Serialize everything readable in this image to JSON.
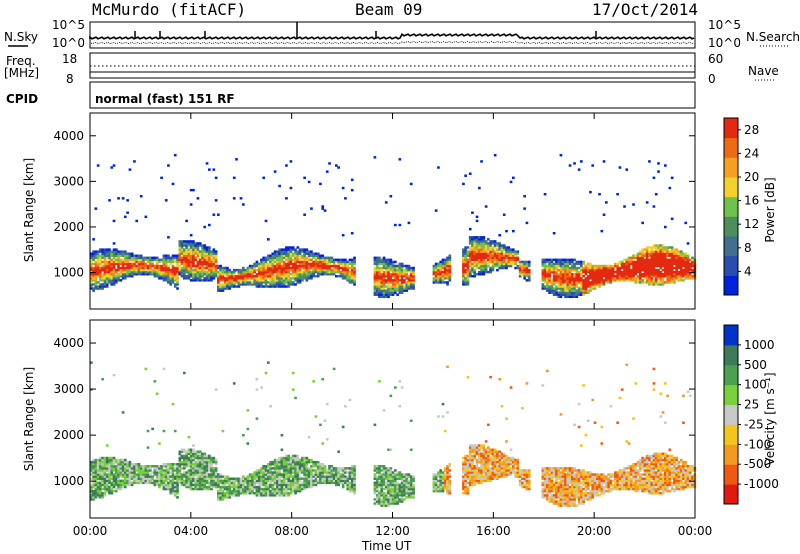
{
  "header": {
    "station": "McMurdo (fitACF)",
    "beam": "Beam 09",
    "date": "17/Oct/2014"
  },
  "top_panel": {
    "left_label": "N.Sky",
    "right_label": "N.Search",
    "tick_top": "10^5",
    "tick_bottom": "10^0"
  },
  "freq_panel": {
    "left_label_1": "Freq.",
    "left_label_2": "[MHz]",
    "right_label": "Nave",
    "left_tick_top": "18",
    "left_tick_bottom": "8",
    "right_tick_top": "60",
    "right_tick_bottom": "0"
  },
  "cpid": {
    "label": "CPID",
    "text": "normal (fast) 151 RF"
  },
  "colors": {
    "power": [
      "#0022dd",
      "#2a4db0",
      "#3f6e8e",
      "#4a8f5c",
      "#6fc24a",
      "#f2d12a",
      "#f5a020",
      "#ee6a12",
      "#e32a10"
    ],
    "velocity": [
      "#0033cc",
      "#3c7a5a",
      "#4aa04e",
      "#7ad038",
      "#c8c8c8",
      "#f2c61a",
      "#f49a22",
      "#ee5a14",
      "#e01a10"
    ]
  },
  "chart_data": [
    {
      "type": "heatmap",
      "title": "",
      "ylabel": "Slant Range [km]",
      "xlabel": "",
      "x_ticks": [
        "00:00",
        "04:00",
        "08:00",
        "12:00",
        "16:00",
        "20:00",
        "00:00"
      ],
      "xlim": [
        0,
        24
      ],
      "y_ticks": [
        "1000",
        "2000",
        "3000",
        "4000"
      ],
      "ylim": [
        200,
        4500
      ],
      "colorbar": {
        "label": "Power [dB]",
        "ticks": [
          "4",
          "8",
          "12",
          "16",
          "20",
          "24",
          "28"
        ],
        "range": [
          0,
          30
        ]
      }
    },
    {
      "type": "heatmap",
      "title": "",
      "ylabel": "Slant Range [km]",
      "xlabel": "Time UT",
      "x_ticks": [
        "00:00",
        "04:00",
        "08:00",
        "12:00",
        "16:00",
        "20:00",
        "00:00"
      ],
      "xlim": [
        0,
        24
      ],
      "y_ticks": [
        "1000",
        "2000",
        "3000",
        "4000"
      ],
      "ylim": [
        200,
        4500
      ],
      "colorbar": {
        "label": "Velocity [m s⁻¹]",
        "ticks": [
          "1000",
          "500",
          "100",
          "25",
          "-25",
          "-100",
          "-500",
          "-1000"
        ]
      }
    }
  ]
}
